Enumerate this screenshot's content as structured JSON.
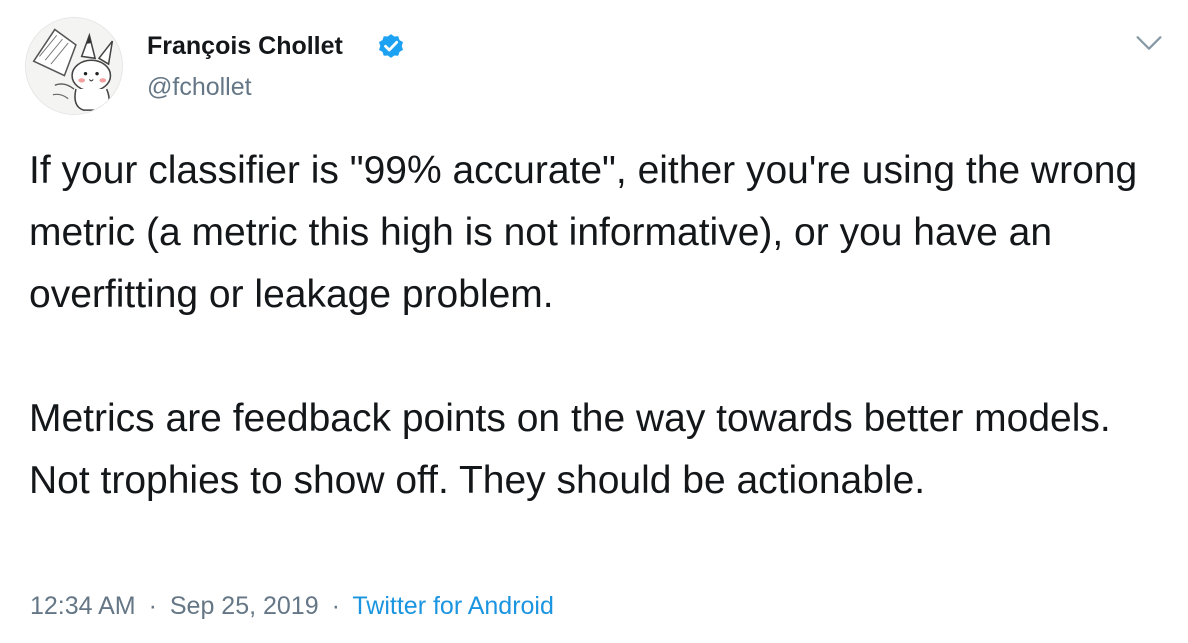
{
  "author": {
    "display_name": "François Chollet",
    "handle": "@fchollet",
    "verified_icon": "verified-badge-icon",
    "avatar_icon": "pikachu-sketch-avatar"
  },
  "tweet": {
    "paragraph_1": "If your classifier is \"99% accurate\", either you're using the wrong metric (a metric this high is not informative), or you have an overfitting or leakage problem.",
    "paragraph_2": "Metrics are feedback points on the way towards better models. Not trophies to show off. They should be actionable."
  },
  "meta": {
    "time": "12:34 AM",
    "date": "Sep 25, 2019",
    "separator": "·",
    "source": "Twitter for Android"
  },
  "colors": {
    "text": "#14171a",
    "secondary": "#657786",
    "link": "#1b95e0",
    "verified": "#1da1f2"
  },
  "menu": {
    "caret_icon": "chevron-down-icon"
  }
}
